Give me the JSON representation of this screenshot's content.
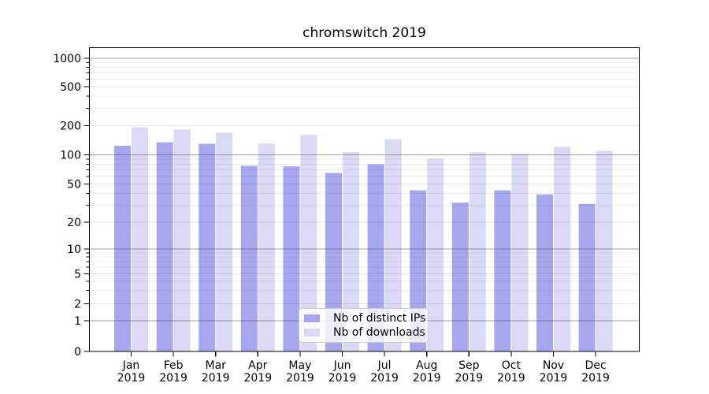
{
  "chart_data": {
    "type": "bar",
    "title": "chromswitch 2019",
    "yscale": "symlog",
    "grid": "both",
    "ylim": [
      0,
      1000
    ],
    "ytick_labels": [
      "0",
      "1",
      "2",
      "5",
      "10",
      "20",
      "50",
      "100",
      "200",
      "500",
      "1000"
    ],
    "ytick_values": [
      0,
      1,
      2,
      5,
      10,
      20,
      50,
      100,
      200,
      500,
      1000
    ],
    "xlabel": "",
    "ylabel": "",
    "legend_position": "lower center",
    "categories": [
      "Jan 2019",
      "Feb 2019",
      "Mar 2019",
      "Apr 2019",
      "May 2019",
      "Jun 2019",
      "Jul 2019",
      "Aug 2019",
      "Sep 2019",
      "Oct 2019",
      "Nov 2019",
      "Dec 2019"
    ],
    "series": [
      {
        "name": "Nb of distinct IPs",
        "color": "#a7a7f0",
        "values": [
          124,
          135,
          130,
          77,
          76,
          65,
          80,
          43,
          32,
          43,
          39,
          31
        ]
      },
      {
        "name": "Nb of downloads",
        "color": "#dadaf7",
        "values": [
          192,
          183,
          170,
          131,
          161,
          107,
          145,
          91,
          106,
          102,
          121,
          110
        ]
      }
    ]
  }
}
